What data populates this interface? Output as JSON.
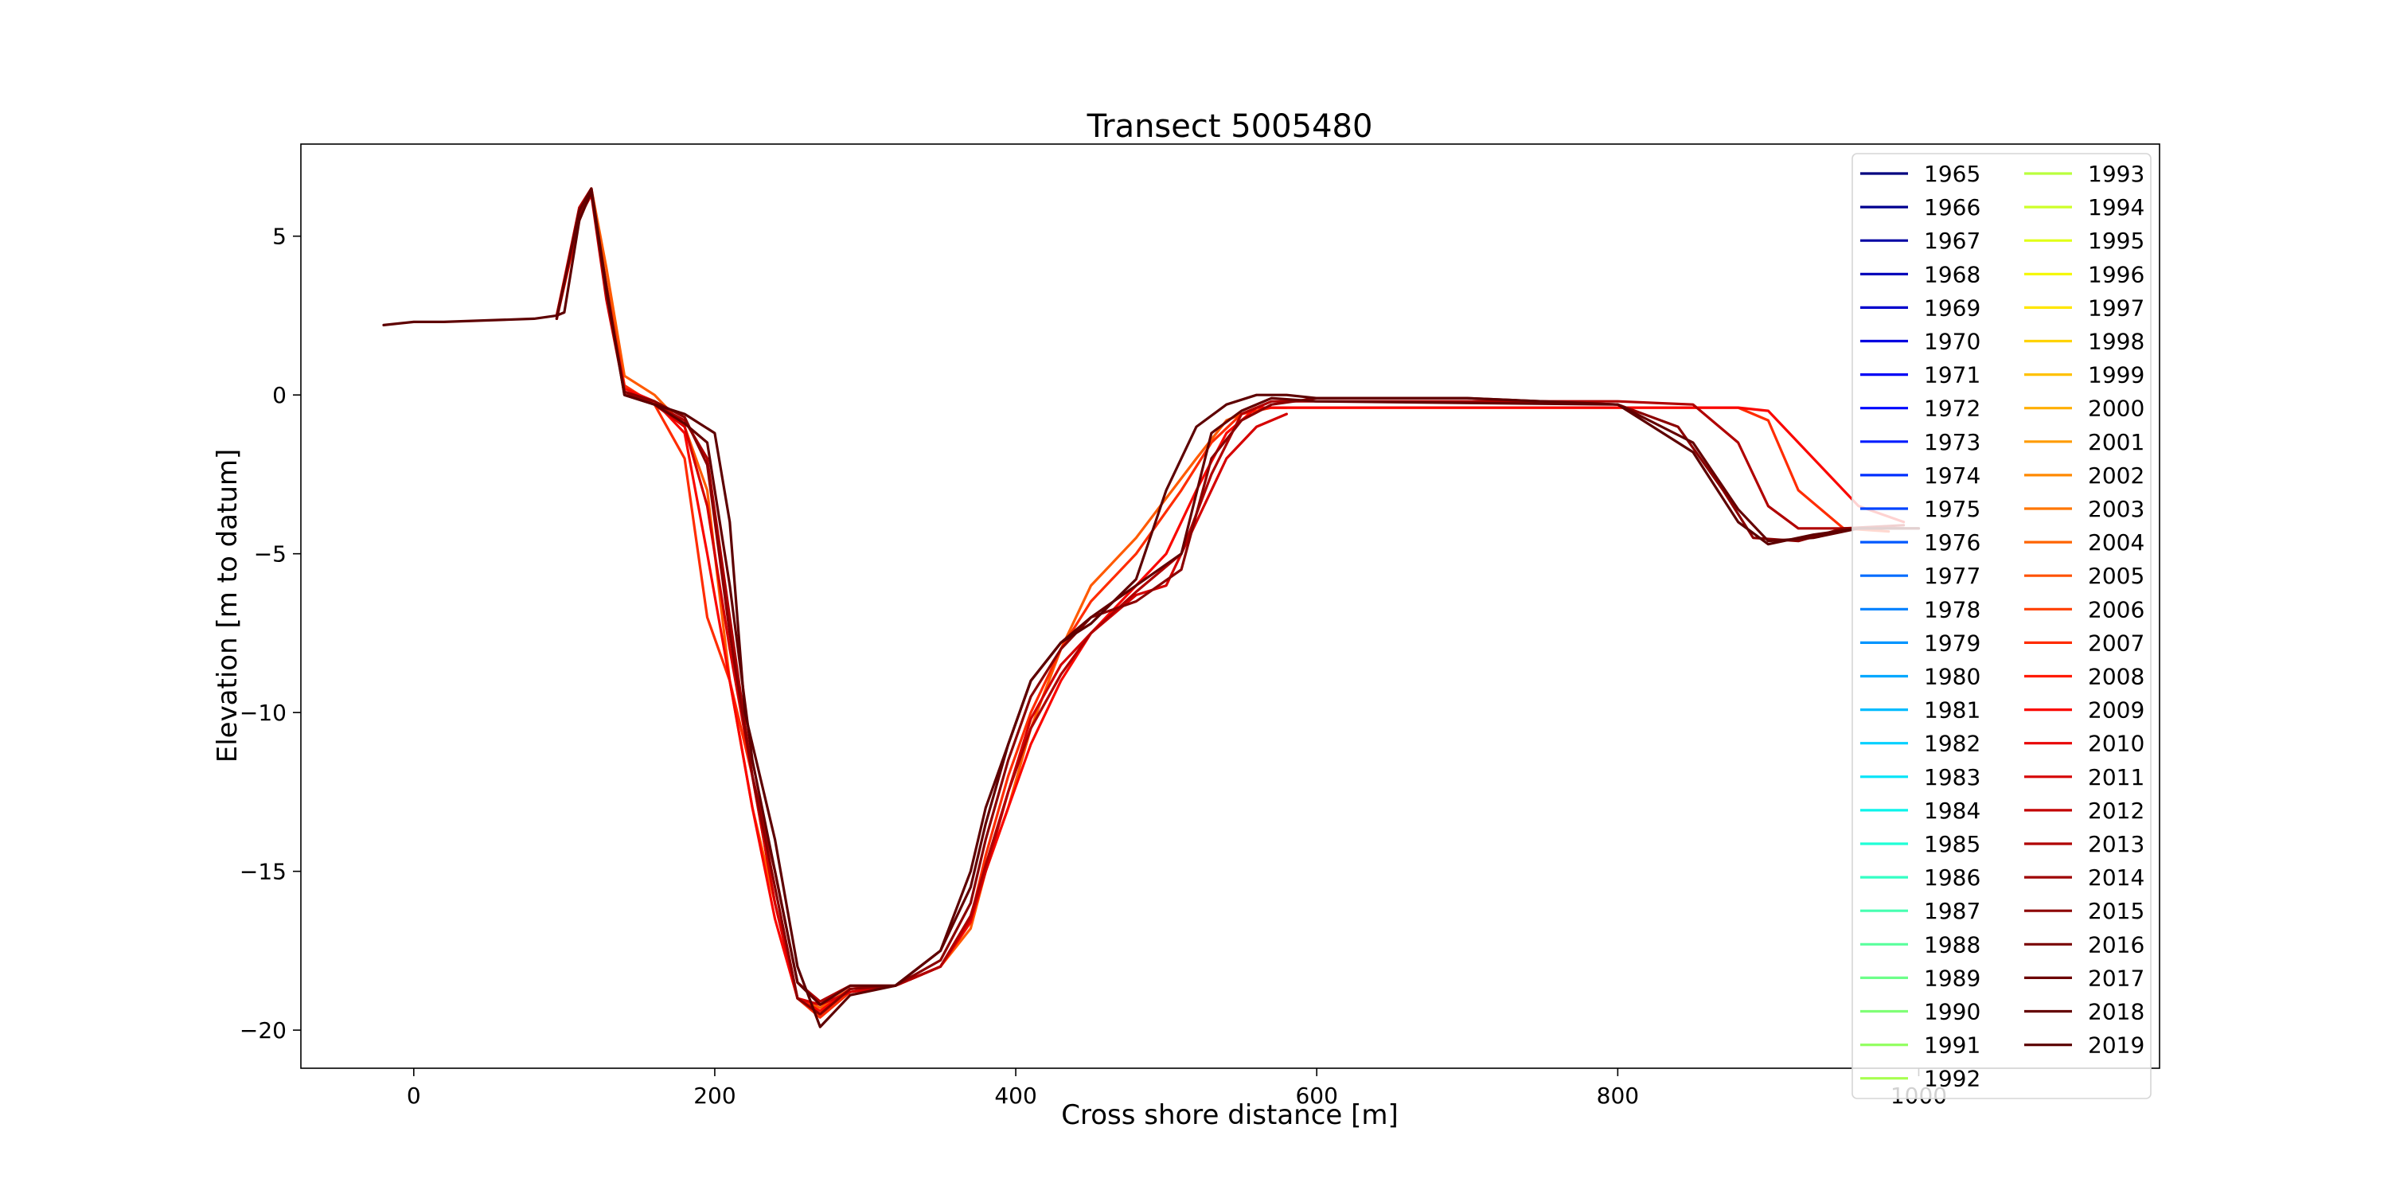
{
  "chart_data": {
    "type": "line",
    "title": "Transect 5005480",
    "xlabel": "Cross shore distance [m]",
    "ylabel": "Elevation [m to datum]",
    "xlim": [
      -75,
      1160
    ],
    "ylim": [
      -21.2,
      7.9
    ],
    "xticks": [
      0,
      200,
      400,
      600,
      800,
      1000
    ],
    "yticks": [
      5,
      0,
      -5,
      -10,
      -15,
      -20
    ],
    "grid": false,
    "legend": {
      "placement": "top-right",
      "columns": 2
    },
    "legend_entries": [
      {
        "label": "1965",
        "color": "#00007f"
      },
      {
        "label": "1966",
        "color": "#00008f"
      },
      {
        "label": "1967",
        "color": "#0000a3"
      },
      {
        "label": "1968",
        "color": "#0000b8"
      },
      {
        "label": "1969",
        "color": "#0000cc"
      },
      {
        "label": "1970",
        "color": "#0000e0"
      },
      {
        "label": "1971",
        "color": "#0000f5"
      },
      {
        "label": "1972",
        "color": "#0008ff"
      },
      {
        "label": "1973",
        "color": "#001cff"
      },
      {
        "label": "1974",
        "color": "#0030ff"
      },
      {
        "label": "1975",
        "color": "#0044ff"
      },
      {
        "label": "1976",
        "color": "#0058ff"
      },
      {
        "label": "1977",
        "color": "#006cff"
      },
      {
        "label": "1978",
        "color": "#0080ff"
      },
      {
        "label": "1979",
        "color": "#0094ff"
      },
      {
        "label": "1980",
        "color": "#00a8ff"
      },
      {
        "label": "1981",
        "color": "#00bcff"
      },
      {
        "label": "1982",
        "color": "#00d0ff"
      },
      {
        "label": "1983",
        "color": "#00e4f8"
      },
      {
        "label": "1984",
        "color": "#0cf4eb"
      },
      {
        "label": "1985",
        "color": "#20ffd7"
      },
      {
        "label": "1986",
        "color": "#33ffc4"
      },
      {
        "label": "1987",
        "color": "#46ffb1"
      },
      {
        "label": "1988",
        "color": "#5aff9d"
      },
      {
        "label": "1989",
        "color": "#6dff8a"
      },
      {
        "label": "1990",
        "color": "#80ff77"
      },
      {
        "label": "1991",
        "color": "#94ff63"
      },
      {
        "label": "1992",
        "color": "#a7ff50"
      },
      {
        "label": "1993",
        "color": "#baff3d"
      },
      {
        "label": "1994",
        "color": "#ceff29"
      },
      {
        "label": "1995",
        "color": "#e1ff16"
      },
      {
        "label": "1996",
        "color": "#f4f802"
      },
      {
        "label": "1997",
        "color": "#ffe600"
      },
      {
        "label": "1998",
        "color": "#ffd300"
      },
      {
        "label": "1999",
        "color": "#ffc100"
      },
      {
        "label": "2000",
        "color": "#ffae00"
      },
      {
        "label": "2001",
        "color": "#ff9b00"
      },
      {
        "label": "2002",
        "color": "#ff8900"
      },
      {
        "label": "2003",
        "color": "#ff7600"
      },
      {
        "label": "2004",
        "color": "#ff6400"
      },
      {
        "label": "2005",
        "color": "#ff5100"
      },
      {
        "label": "2006",
        "color": "#ff3f00"
      },
      {
        "label": "2007",
        "color": "#ff2c00"
      },
      {
        "label": "2008",
        "color": "#ff1a00"
      },
      {
        "label": "2009",
        "color": "#fa0700"
      },
      {
        "label": "2010",
        "color": "#e80000"
      },
      {
        "label": "2011",
        "color": "#d50000"
      },
      {
        "label": "2012",
        "color": "#c30000"
      },
      {
        "label": "2013",
        "color": "#b00000"
      },
      {
        "label": "2014",
        "color": "#9e0000"
      },
      {
        "label": "2015",
        "color": "#8b0000"
      },
      {
        "label": "2016",
        "color": "#790000"
      },
      {
        "label": "2017",
        "color": "#6c0000"
      },
      {
        "label": "2018",
        "color": "#640000"
      },
      {
        "label": "2019",
        "color": "#5e0000"
      }
    ],
    "series": [
      {
        "color": "#ff5a00",
        "x": [
          95,
          110,
          118,
          128,
          140,
          160,
          180,
          195,
          210,
          225,
          240,
          255,
          270,
          290,
          320,
          350,
          370,
          380,
          395,
          410,
          430,
          450,
          480,
          520,
          540,
          560,
          580
        ],
        "y": [
          2.5,
          5.8,
          6.5,
          4,
          0.6,
          0,
          -1,
          -3,
          -9,
          -13,
          -16,
          -19,
          -19.3,
          -18.7,
          -18.6,
          -18,
          -16.8,
          -15,
          -13,
          -10.5,
          -8,
          -6,
          -4.5,
          -2,
          -0.8,
          -0.4,
          -0.4
        ]
      },
      {
        "color": "#ff2c00",
        "x": [
          95,
          110,
          118,
          128,
          140,
          160,
          180,
          195,
          210,
          225,
          240,
          255,
          270,
          290,
          320,
          350,
          370,
          380,
          395,
          410,
          430,
          450,
          480,
          510,
          530,
          550,
          570,
          600,
          800,
          880,
          900,
          920,
          950,
          980
        ],
        "y": [
          2.4,
          5.5,
          6.4,
          3.5,
          0.3,
          -0.3,
          -2,
          -7,
          -9,
          -12,
          -16,
          -19,
          -19.6,
          -18.8,
          -18.6,
          -18,
          -16.5,
          -14.5,
          -12,
          -10,
          -8,
          -6.5,
          -5,
          -3,
          -1.5,
          -0.6,
          -0.4,
          -0.4,
          -0.4,
          -0.4,
          -0.8,
          -3,
          -4.2,
          -4.3
        ]
      },
      {
        "color": "#fa0700",
        "x": [
          95,
          110,
          118,
          128,
          140,
          160,
          180,
          195,
          210,
          225,
          240,
          255,
          270,
          290,
          320,
          350,
          370,
          380,
          395,
          410,
          430,
          450,
          480,
          500,
          520,
          540,
          560,
          580,
          600,
          700,
          800,
          880,
          900,
          920,
          960,
          990
        ],
        "y": [
          2.5,
          5.9,
          6.5,
          3.2,
          0.2,
          -0.2,
          -1.2,
          -5,
          -9,
          -13,
          -16.5,
          -19,
          -19.4,
          -18.7,
          -18.6,
          -18,
          -16.6,
          -15,
          -13,
          -11,
          -9,
          -7.5,
          -6,
          -5,
          -3,
          -1.2,
          -0.4,
          -0.4,
          -0.4,
          -0.4,
          -0.4,
          -0.4,
          -0.5,
          -1.5,
          -3.5,
          -4
        ]
      },
      {
        "color": "#d50000",
        "x": [
          95,
          110,
          118,
          128,
          140,
          160,
          180,
          195,
          210,
          225,
          240,
          255,
          270,
          290,
          320,
          350,
          370,
          380,
          395,
          410,
          430,
          450,
          480,
          500,
          520,
          540,
          560,
          580
        ],
        "y": [
          2.4,
          5.6,
          6.3,
          3,
          0.1,
          -0.3,
          -1,
          -3.5,
          -8,
          -12,
          -16,
          -19,
          -19.2,
          -18.8,
          -18.6,
          -18,
          -16.5,
          -15,
          -12.5,
          -10.2,
          -8.5,
          -7.5,
          -6.3,
          -6,
          -4,
          -2,
          -1,
          -0.6
        ]
      },
      {
        "color": "#b00000",
        "x": [
          95,
          110,
          118,
          128,
          140,
          160,
          180,
          195,
          210,
          225,
          240,
          255,
          270,
          290,
          320,
          350,
          370,
          380,
          395,
          410,
          430,
          450,
          480,
          510,
          530,
          550,
          570,
          600,
          800,
          850,
          880,
          900,
          920,
          950,
          990
        ],
        "y": [
          2.4,
          5.9,
          6.5,
          3.3,
          0.1,
          -0.3,
          -0.8,
          -2,
          -7,
          -12,
          -15,
          -18.5,
          -19.1,
          -18.6,
          -18.6,
          -18,
          -16.4,
          -14.8,
          -12.5,
          -10.5,
          -8.8,
          -7.5,
          -6.2,
          -5,
          -2.5,
          -0.6,
          -0.2,
          -0.2,
          -0.2,
          -0.3,
          -1.5,
          -3.5,
          -4.2,
          -4.2,
          -4.1
        ]
      },
      {
        "color": "#8b0000",
        "x": [
          95,
          110,
          118,
          128,
          140,
          160,
          180,
          195,
          210,
          225,
          240,
          255,
          270,
          290,
          320,
          350,
          370,
          380,
          395,
          410,
          430,
          450,
          480,
          510,
          530,
          550,
          570,
          600,
          700,
          800,
          840,
          870,
          890,
          920,
          950,
          990
        ],
        "y": [
          2.5,
          5.7,
          6.4,
          3.2,
          0.1,
          -0.2,
          -0.7,
          -2.2,
          -7.5,
          -12,
          -15.5,
          -19,
          -19.5,
          -18.7,
          -18.6,
          -17.8,
          -16,
          -14,
          -11.5,
          -9.5,
          -8,
          -7,
          -6.5,
          -5.5,
          -2,
          -0.8,
          -0.3,
          -0.1,
          -0.1,
          -0.3,
          -1,
          -3,
          -4.5,
          -4.6,
          -4.2,
          -4.2
        ]
      },
      {
        "color": "#640000",
        "x": [
          95,
          110,
          118,
          128,
          140,
          160,
          180,
          195,
          210,
          225,
          240,
          255,
          270,
          290,
          320,
          350,
          370,
          380,
          395,
          410,
          430,
          450,
          480,
          510,
          530,
          550,
          570,
          600,
          800,
          850,
          880,
          900,
          930,
          960,
          1000
        ],
        "y": [
          2.4,
          5.8,
          6.5,
          3.4,
          0,
          -0.3,
          -0.9,
          -1.5,
          -6,
          -11.5,
          -15,
          -18.5,
          -19.2,
          -18.6,
          -18.6,
          -17.5,
          -15.5,
          -13.5,
          -11,
          -9,
          -7.8,
          -7,
          -6,
          -5,
          -1.2,
          -0.5,
          -0.1,
          -0.2,
          -0.3,
          -1.5,
          -3.6,
          -4.6,
          -4.5,
          -4.2,
          -4.2
        ]
      },
      {
        "color": "#5e0000",
        "x": [
          -20,
          0,
          20,
          50,
          80,
          95,
          100,
          110,
          118,
          128,
          140,
          160,
          180,
          200,
          210,
          220,
          240,
          255,
          270,
          290,
          320,
          350,
          370,
          380,
          395,
          410,
          430,
          450,
          480,
          500,
          520,
          540,
          560,
          580,
          600,
          700,
          800,
          850,
          880,
          900,
          930,
          960,
          1000
        ],
        "y": [
          2.2,
          2.3,
          2.3,
          2.35,
          2.4,
          2.5,
          2.6,
          5.5,
          6.4,
          3.3,
          0,
          -0.3,
          -0.6,
          -1.2,
          -4,
          -10,
          -14,
          -18,
          -19.9,
          -18.9,
          -18.6,
          -17.5,
          -15,
          -13,
          -11,
          -9,
          -7.8,
          -7.2,
          -5.8,
          -3,
          -1,
          -0.3,
          0,
          0,
          -0.1,
          -0.1,
          -0.3,
          -1.8,
          -4,
          -4.7,
          -4.4,
          -4.2,
          -4.2
        ]
      }
    ]
  }
}
